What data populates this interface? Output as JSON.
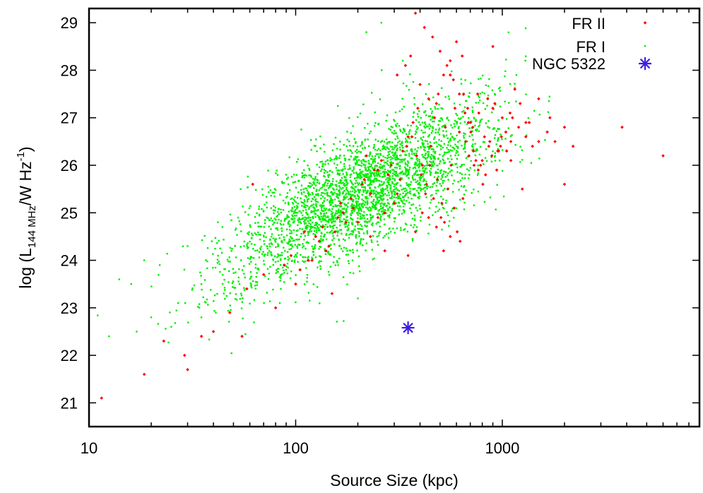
{
  "chart_data": {
    "type": "scatter",
    "xscale": "log",
    "xlim": [
      10,
      9000
    ],
    "ylim": [
      20.5,
      29.3
    ],
    "xticks": [
      10,
      100,
      1000
    ],
    "xtick_labels": [
      "10",
      "100",
      "1000"
    ],
    "yticks": [
      21,
      22,
      23,
      24,
      25,
      26,
      27,
      28,
      29
    ],
    "ytick_labels": [
      "21",
      "22",
      "23",
      "24",
      "25",
      "26",
      "27",
      "28",
      "29"
    ],
    "xlabel": "Source Size (kpc)",
    "ylabel": {
      "pre": "log (L",
      "sub": "144 MHz",
      "mid": "/W Hz",
      "sup": "-1",
      "post": ")"
    },
    "grid": false,
    "legend_position": "top-right",
    "series": [
      {
        "name": "FR II",
        "color": "#ff0000",
        "marker": "dot",
        "x": [
          11.5,
          18.5,
          23,
          30,
          29,
          35,
          40,
          48,
          55,
          62,
          58,
          70,
          80,
          88,
          95,
          100,
          110,
          120,
          130,
          140,
          150,
          160,
          170,
          185,
          200,
          215,
          230,
          250,
          270,
          290,
          310,
          330,
          350,
          370,
          390,
          410,
          430,
          450,
          470,
          490,
          510,
          530,
          560,
          590,
          620,
          650,
          690,
          730,
          770,
          820,
          870,
          920,
          980,
          1050,
          1120,
          1200,
          1300,
          1400,
          1500,
          1650,
          1800,
          2000,
          2200,
          3800,
          6000,
          380,
          420,
          460,
          500,
          540,
          580,
          620,
          660,
          700,
          310,
          340,
          360,
          400,
          440,
          480,
          520,
          560,
          600,
          640,
          680,
          720,
          760,
          800,
          850,
          900,
          950,
          1000,
          1100,
          1250,
          900,
          300,
          270,
          250,
          230,
          210,
          190,
          175,
          165,
          155,
          145,
          135,
          125,
          115,
          105,
          220,
          240,
          260,
          280,
          320,
          345,
          365,
          385,
          405,
          425,
          445,
          465,
          485,
          505,
          525,
          545,
          565,
          585,
          605,
          625,
          645,
          665,
          685,
          705,
          725,
          745,
          765,
          785,
          805,
          830,
          860,
          890,
          940,
          990,
          1040,
          1090,
          1150,
          1220,
          1350,
          2000,
          1700,
          1500,
          1300,
          1100,
          960,
          560,
          520,
          480,
          440,
          410,
          380,
          350
        ],
        "y": [
          21.1,
          21.6,
          22.3,
          21.7,
          22.0,
          22.4,
          22.5,
          22.9,
          22.4,
          25.6,
          23.4,
          23.7,
          23.0,
          23.9,
          24.1,
          23.5,
          24.6,
          24.0,
          24.4,
          24.2,
          23.3,
          24.9,
          25.0,
          25.3,
          24.8,
          25.7,
          24.5,
          25.9,
          24.2,
          26.0,
          25.4,
          26.3,
          26.6,
          26.9,
          27.2,
          26.0,
          25.6,
          26.4,
          27.0,
          27.5,
          25.2,
          26.8,
          27.9,
          27.2,
          26.7,
          27.5,
          26.2,
          26.0,
          27.1,
          26.6,
          26.5,
          27.3,
          26.4,
          26.3,
          27.0,
          26.8,
          26.9,
          26.4,
          26.5,
          26.7,
          26.5,
          25.6,
          26.4,
          26.8,
          26.2,
          29.2,
          28.9,
          28.7,
          28.4,
          28.1,
          27.8,
          27.5,
          27.1,
          26.9,
          27.9,
          28.1,
          28.3,
          27.7,
          27.4,
          27.3,
          27.9,
          28.2,
          28.6,
          28.3,
          27.2,
          26.8,
          27.5,
          26.1,
          27.4,
          27.2,
          26.3,
          27.0,
          26.5,
          25.5,
          28.5,
          25.2,
          25.0,
          24.9,
          25.4,
          25.6,
          25.1,
          24.8,
          25.2,
          24.6,
          24.3,
          24.7,
          24.5,
          24.0,
          23.8,
          26.2,
          25.9,
          26.1,
          25.8,
          25.7,
          26.4,
          26.6,
          26.2,
          25.8,
          25.4,
          26.0,
          25.3,
          25.7,
          24.9,
          24.8,
          25.5,
          26.0,
          25.1,
          24.6,
          24.4,
          25.3,
          26.5,
          26.9,
          26.7,
          26.3,
          26.1,
          25.9,
          26.0,
          25.6,
          25.8,
          26.4,
          26.2,
          25.9,
          26.6,
          26.7,
          27.1,
          27.6,
          27.3,
          26.9,
          26.8,
          27.0,
          27.4,
          26.6,
          26.1,
          26.3,
          24.5,
          24.2,
          24.7,
          24.9,
          25.0,
          24.6,
          24.1
        ]
      },
      {
        "name": "FR I",
        "color": "#00ee00",
        "marker": "dot",
        "generated": true,
        "count": 3000,
        "anchors": {
          "center_log_x": 2.32,
          "center_y": 25.45,
          "outliers_x": [
            12.5,
            14,
            16,
            18.5,
            17,
            20,
            22,
            25,
            27,
            30,
            35,
            42,
            200,
            260,
            330,
            380,
            220
          ],
          "outliers_y": [
            22.4,
            23.6,
            23.5,
            24.0,
            22.5,
            22.8,
            23.9,
            22.6,
            23.1,
            24.3,
            22.8,
            24.8,
            23.2,
            29.0,
            28.2,
            29.2,
            28.8
          ]
        }
      },
      {
        "name": "NGC 5322",
        "color": "#3b1ee6",
        "marker": "star",
        "x": [
          350
        ],
        "y": [
          22.58
        ]
      }
    ]
  }
}
